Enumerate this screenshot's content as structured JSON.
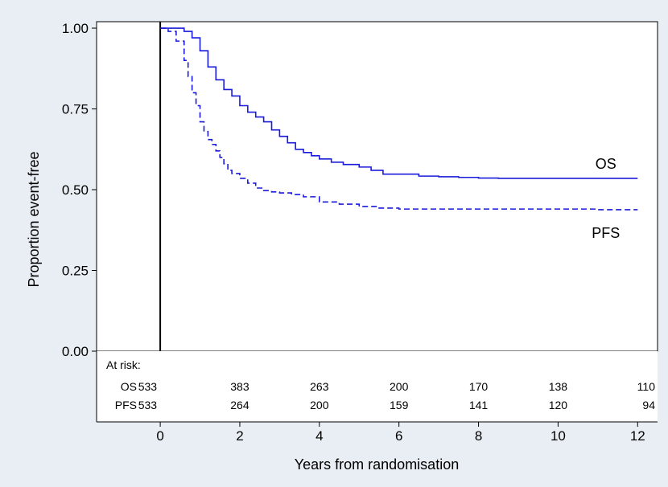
{
  "colors": {
    "background": "#e8eef3",
    "plot_area": "#ffffff",
    "curve": "#1a1adb",
    "axis": "#000000"
  },
  "chart_data": {
    "type": "line",
    "xlabel": "Years from randomisation",
    "ylabel": "Proportion event-free",
    "xlim": [
      -1.6,
      12.5
    ],
    "ylim": [
      0,
      1.02
    ],
    "x_ticks": [
      0,
      2,
      4,
      6,
      8,
      10,
      12
    ],
    "y_ticks": [
      {
        "value": 0.0,
        "label": "0.00"
      },
      {
        "value": 0.25,
        "label": "0.25"
      },
      {
        "value": 0.5,
        "label": "0.50"
      },
      {
        "value": 0.75,
        "label": "0.75"
      },
      {
        "value": 1.0,
        "label": "1.00"
      }
    ],
    "grid": false,
    "series": [
      {
        "name": "OS",
        "line_style": "solid",
        "x": [
          0,
          0.4,
          0.6,
          0.8,
          1.0,
          1.2,
          1.4,
          1.6,
          1.8,
          2.0,
          2.2,
          2.4,
          2.6,
          2.8,
          3.0,
          3.2,
          3.4,
          3.6,
          3.8,
          4.0,
          4.3,
          4.6,
          5.0,
          5.3,
          5.6,
          6.0,
          6.5,
          7.0,
          7.5,
          8.0,
          8.5,
          9.0,
          10.0,
          11.0,
          12.0
        ],
        "y": [
          1.0,
          1.0,
          0.99,
          0.97,
          0.93,
          0.88,
          0.84,
          0.81,
          0.79,
          0.76,
          0.74,
          0.725,
          0.71,
          0.685,
          0.665,
          0.645,
          0.625,
          0.615,
          0.605,
          0.595,
          0.585,
          0.578,
          0.57,
          0.56,
          0.548,
          0.548,
          0.542,
          0.54,
          0.538,
          0.536,
          0.535,
          0.535,
          0.535,
          0.535,
          0.535
        ]
      },
      {
        "name": "PFS",
        "line_style": "dashed",
        "x": [
          0,
          0.2,
          0.4,
          0.6,
          0.7,
          0.8,
          0.9,
          1.0,
          1.1,
          1.2,
          1.3,
          1.4,
          1.5,
          1.6,
          1.7,
          1.8,
          2.0,
          2.2,
          2.4,
          2.6,
          2.8,
          3.0,
          3.3,
          3.6,
          4.0,
          4.5,
          5.0,
          5.5,
          6.0,
          7.0,
          8.0,
          9.0,
          10.0,
          11.0,
          12.0
        ],
        "y": [
          1.0,
          0.99,
          0.96,
          0.9,
          0.85,
          0.8,
          0.76,
          0.71,
          0.68,
          0.655,
          0.64,
          0.62,
          0.6,
          0.58,
          0.56,
          0.55,
          0.535,
          0.52,
          0.505,
          0.497,
          0.493,
          0.49,
          0.485,
          0.478,
          0.462,
          0.455,
          0.448,
          0.443,
          0.44,
          0.44,
          0.44,
          0.44,
          0.44,
          0.438,
          0.438
        ]
      }
    ],
    "curve_labels": [
      {
        "series": "OS",
        "text": "OS"
      },
      {
        "series": "PFS",
        "text": "PFS"
      }
    ],
    "at_risk": {
      "title": "At risk:",
      "times": [
        0,
        2,
        4,
        6,
        8,
        10,
        12
      ],
      "rows": [
        {
          "label": "OS",
          "values": [
            "533",
            "383",
            "263",
            "200",
            "170",
            "138",
            "110"
          ]
        },
        {
          "label": "PFS",
          "values": [
            "533",
            "264",
            "200",
            "159",
            "141",
            "120",
            "94"
          ]
        }
      ]
    }
  }
}
